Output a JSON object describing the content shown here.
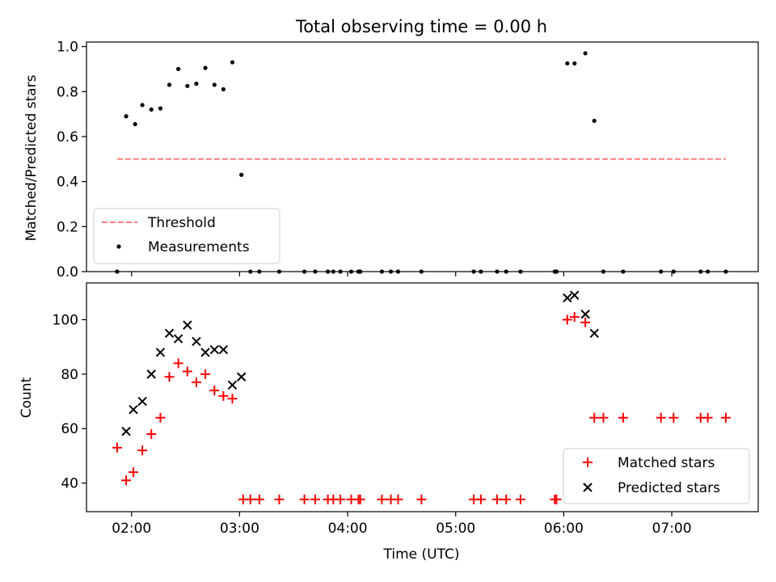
{
  "chart_data": [
    {
      "type": "scatter",
      "title": "Total observing time = 0.00 h",
      "xlabel": "",
      "ylabel": "Matched/Predicted stars",
      "xlim": [
        1.583,
        7.8
      ],
      "ylim": [
        0,
        1.02
      ],
      "yticks": [
        0.0,
        0.2,
        0.4,
        0.6,
        0.8,
        1.0
      ],
      "ytick_labels": [
        "0.0",
        "0.2",
        "0.4",
        "0.6",
        "0.8",
        "1.0"
      ],
      "xticks": [
        2,
        3,
        4,
        5,
        6,
        7
      ],
      "xtick_labels": [
        "",
        "",
        "",
        "",
        "",
        ""
      ],
      "grid": false,
      "legend_position": "lower-left",
      "series": [
        {
          "name": "Threshold",
          "style": "dashed-line",
          "color": "#ff7f7f",
          "x": [
            1.867,
            7.5
          ],
          "y": [
            0.5,
            0.5
          ]
        },
        {
          "name": "Measurements",
          "style": "dot",
          "color": "#000000",
          "x": [
            1.867,
            1.95,
            2.033,
            2.1,
            2.183,
            2.267,
            2.35,
            2.433,
            2.517,
            2.6,
            2.683,
            2.767,
            2.85,
            2.933,
            3.017,
            3.1,
            3.183,
            3.367,
            3.6,
            3.7,
            3.817,
            3.867,
            3.933,
            4.033,
            4.1,
            4.117,
            4.317,
            4.4,
            4.467,
            4.683,
            5.167,
            5.233,
            5.383,
            5.467,
            5.6,
            5.917,
            5.933,
            6.033,
            6.1,
            6.2,
            6.283,
            6.367,
            6.55,
            6.9,
            7.017,
            7.267,
            7.333,
            7.5
          ],
          "y": [
            0.0,
            0.69,
            0.655,
            0.74,
            0.72,
            0.725,
            0.83,
            0.9,
            0.825,
            0.835,
            0.905,
            0.83,
            0.81,
            0.93,
            0.43,
            0.0,
            0.0,
            0.0,
            0.0,
            0.0,
            0.0,
            0.0,
            0.0,
            0.0,
            0.0,
            0.0,
            0.0,
            0.0,
            0.0,
            0.0,
            0.0,
            0.0,
            0.0,
            0.0,
            0.0,
            0.0,
            0.0,
            0.925,
            0.925,
            0.97,
            0.67,
            0.0,
            0.0,
            0.0,
            0.0,
            0.0,
            0.0,
            0.0
          ]
        }
      ]
    },
    {
      "type": "scatter",
      "title": "",
      "xlabel": "Time (UTC)",
      "ylabel": "Count",
      "xlim": [
        1.583,
        7.8
      ],
      "ylim": [
        29.5,
        113.5
      ],
      "yticks": [
        40,
        60,
        80,
        100
      ],
      "ytick_labels": [
        "40",
        "60",
        "80",
        "100"
      ],
      "xticks": [
        2,
        3,
        4,
        5,
        6,
        7
      ],
      "xtick_labels": [
        "02:00",
        "03:00",
        "04:00",
        "05:00",
        "06:00",
        "07:00"
      ],
      "grid": false,
      "legend_position": "lower-right",
      "series": [
        {
          "name": "Matched stars",
          "style": "plus",
          "color": "#ff0000",
          "x": [
            1.867,
            1.95,
            2.017,
            2.1,
            2.183,
            2.267,
            2.35,
            2.433,
            2.517,
            2.6,
            2.683,
            2.767,
            2.85,
            2.933,
            3.033,
            3.1,
            3.183,
            3.367,
            3.6,
            3.7,
            3.817,
            3.867,
            3.933,
            4.033,
            4.1,
            4.117,
            4.317,
            4.4,
            4.467,
            4.683,
            5.167,
            5.233,
            5.383,
            5.467,
            5.6,
            5.917,
            5.933,
            6.033,
            6.1,
            6.2,
            6.283,
            6.367,
            6.55,
            6.9,
            7.017,
            7.267,
            7.333,
            7.5
          ],
          "y": [
            53,
            41,
            44,
            52,
            58,
            64,
            79,
            84,
            81,
            77,
            80,
            74,
            72,
            71,
            34,
            34,
            34,
            34,
            34,
            34,
            34,
            34,
            34,
            34,
            34,
            34,
            34,
            34,
            34,
            34,
            34,
            34,
            34,
            34,
            34,
            34,
            34,
            100,
            101,
            99,
            64,
            64,
            64,
            64,
            64,
            64,
            64,
            64
          ]
        },
        {
          "name": "Predicted stars",
          "style": "x",
          "color": "#000000",
          "x": [
            1.95,
            2.017,
            2.1,
            2.183,
            2.267,
            2.35,
            2.433,
            2.517,
            2.6,
            2.683,
            2.767,
            2.85,
            2.933,
            3.017,
            6.033,
            6.1,
            6.2,
            6.283
          ],
          "y": [
            59,
            67,
            70,
            80,
            88,
            95,
            93,
            98,
            92,
            88,
            89,
            89,
            76,
            79,
            108,
            109,
            102,
            95
          ]
        }
      ]
    }
  ]
}
